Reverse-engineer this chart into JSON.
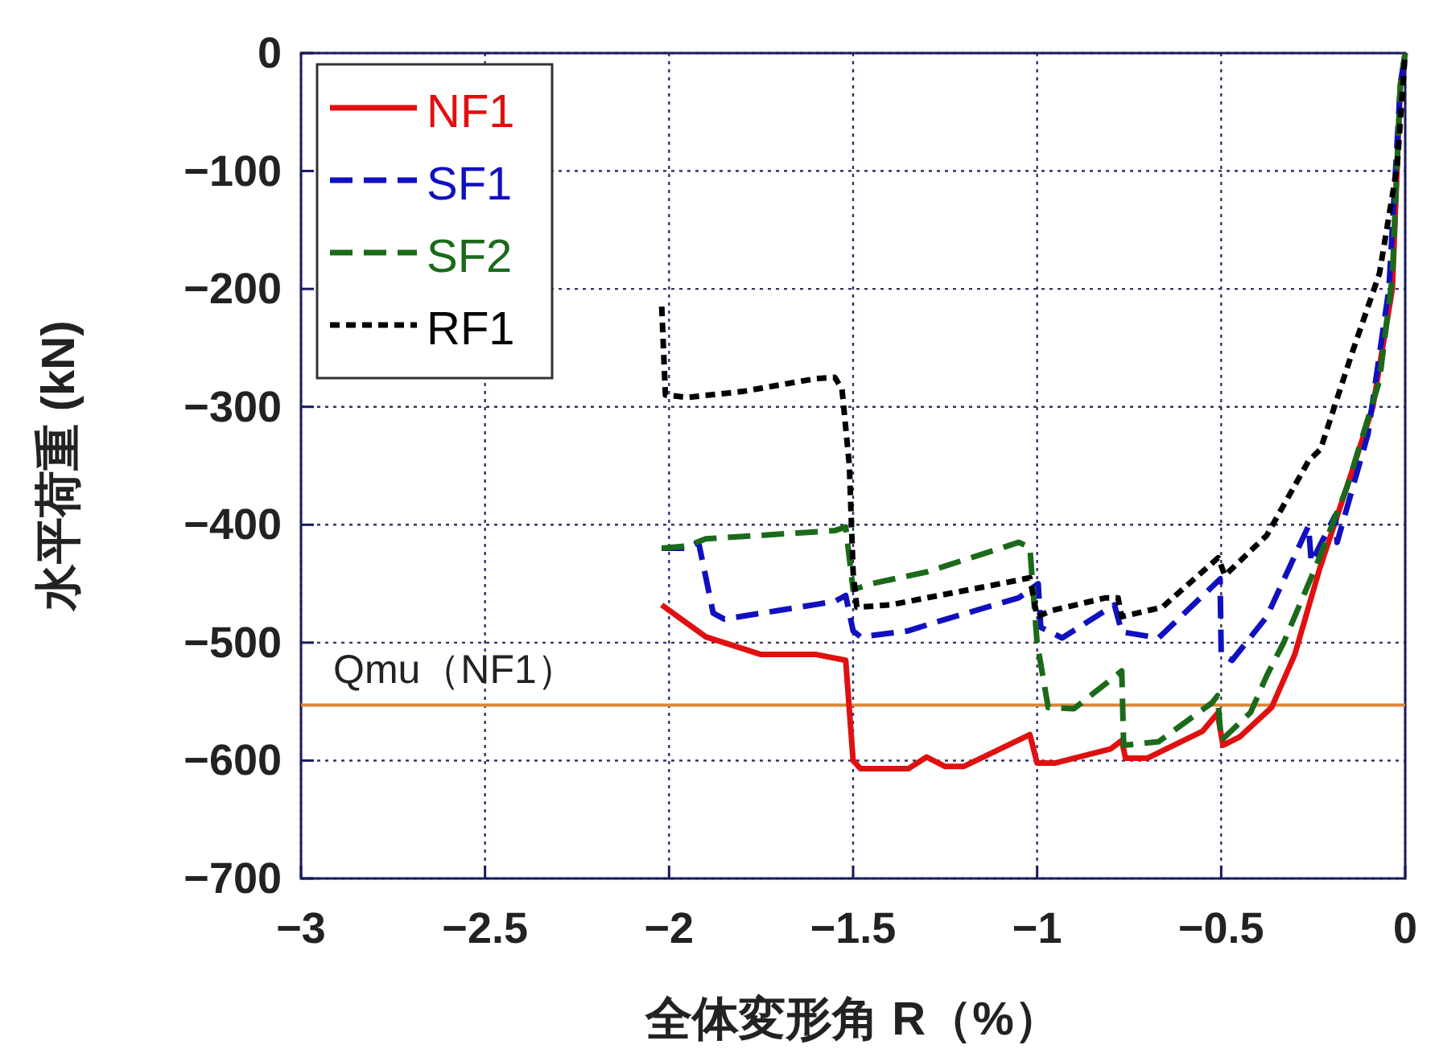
{
  "chart_data": {
    "type": "line",
    "xlabel": "全体変形角 R（%）",
    "ylabel": "水平荷重 (kN)",
    "xlim": [
      -3,
      0
    ],
    "ylim": [
      -700,
      0
    ],
    "xticks": [
      {
        "value": -3,
        "label": "−3"
      },
      {
        "value": -2.5,
        "label": "−2.5"
      },
      {
        "value": -2,
        "label": "−2"
      },
      {
        "value": -1.5,
        "label": "−1.5"
      },
      {
        "value": -1,
        "label": "−1"
      },
      {
        "value": -0.5,
        "label": "−0.5"
      },
      0
    ],
    "yticks": [
      {
        "value": -700,
        "label": "−700"
      },
      {
        "value": -600,
        "label": "−600"
      },
      {
        "value": -500,
        "label": "−500"
      },
      {
        "value": -400,
        "label": "−400"
      },
      {
        "value": -300,
        "label": "−300"
      },
      {
        "value": -200,
        "label": "−200"
      },
      {
        "value": -100,
        "label": "−100"
      },
      0
    ],
    "grid": true,
    "legend": "top left",
    "ref_lines": [
      {
        "axis": "y",
        "value": -553,
        "label": "Qmu（NF1）",
        "color": "#d9863a"
      }
    ],
    "series": [
      {
        "name": "NF1",
        "color": "#e01010",
        "line_style": "solid",
        "x": [
          -2.02,
          -1.9,
          -1.75,
          -1.6,
          -1.52,
          -1.5,
          -1.48,
          -1.35,
          -1.3,
          -1.25,
          -1.2,
          -1.02,
          -1.0,
          -0.95,
          -0.8,
          -0.77,
          -0.76,
          -0.7,
          -0.55,
          -0.51,
          -0.495,
          -0.45,
          -0.363,
          -0.3,
          -0.232,
          -0.15,
          -0.088,
          -0.035,
          -0.013,
          0
        ],
        "values": [
          -468,
          -495,
          -510,
          -510,
          -515,
          -600,
          -607,
          -607,
          -597,
          -605,
          -605,
          -578,
          -602,
          -602,
          -590,
          -583,
          -598,
          -598,
          -575,
          -560,
          -587,
          -580,
          -555,
          -510,
          -437,
          -360,
          -300,
          -200,
          -27,
          0
        ]
      },
      {
        "name": "SF1",
        "color": "#1010c0",
        "line_style": "dashed",
        "x": [
          -2.02,
          -1.95,
          -1.92,
          -1.88,
          -1.85,
          -1.55,
          -1.52,
          -1.5,
          -1.48,
          -1.35,
          -1.28,
          -1.05,
          -0.997,
          -0.99,
          -0.932,
          -0.8,
          -0.79,
          -0.77,
          -0.67,
          -0.503,
          -0.5,
          -0.47,
          -0.376,
          -0.263,
          -0.255,
          -0.19,
          -0.185,
          -0.101,
          -0.044,
          -0.013,
          0
        ],
        "values": [
          -420,
          -420,
          -415,
          -475,
          -480,
          -465,
          -460,
          -490,
          -495,
          -490,
          -483,
          -462,
          -450,
          -487,
          -496,
          -470,
          -468,
          -491,
          -496,
          -446,
          -510,
          -515,
          -478,
          -401,
          -432,
          -392,
          -415,
          -323,
          -200,
          -27,
          0
        ]
      },
      {
        "name": "SF2",
        "color": "#1a6a1a",
        "line_style": "dashed",
        "x": [
          -2.02,
          -1.95,
          -1.9,
          -1.55,
          -1.52,
          -1.5,
          -1.45,
          -1.3,
          -1.1,
          -1.05,
          -1.02,
          -1.0,
          -0.97,
          -0.9,
          -0.77,
          -0.765,
          -0.67,
          -0.525,
          -0.51,
          -0.5,
          -0.42,
          -0.376,
          -0.33,
          -0.245,
          -0.158,
          -0.07,
          -0.035,
          -0.013,
          0
        ],
        "values": [
          -420,
          -418,
          -412,
          -405,
          -402,
          -455,
          -450,
          -440,
          -420,
          -415,
          -419,
          -500,
          -555,
          -556,
          -524,
          -587,
          -584,
          -551,
          -545,
          -583,
          -559,
          -528,
          -500,
          -437,
          -368,
          -278,
          -190,
          -27,
          0
        ]
      },
      {
        "name": "RF1",
        "color": "#000000",
        "line_style": "dotted",
        "x": [
          -2.02,
          -2.01,
          -1.95,
          -1.8,
          -1.6,
          -1.55,
          -1.53,
          -1.51,
          -1.5,
          -1.49,
          -1.4,
          -1.3,
          -1.1,
          -1.02,
          -1.0,
          -0.962,
          -0.814,
          -0.78,
          -0.77,
          -0.66,
          -0.508,
          -0.49,
          -0.376,
          -0.263,
          -0.23,
          -0.145,
          -0.07,
          -0.022,
          0
        ],
        "values": [
          -215,
          -290,
          -292,
          -287,
          -276,
          -275,
          -285,
          -350,
          -440,
          -470,
          -468,
          -462,
          -450,
          -445,
          -478,
          -473,
          -462,
          -462,
          -478,
          -470,
          -428,
          -443,
          -409,
          -346,
          -336,
          -255,
          -187,
          -96,
          0
        ]
      }
    ]
  }
}
